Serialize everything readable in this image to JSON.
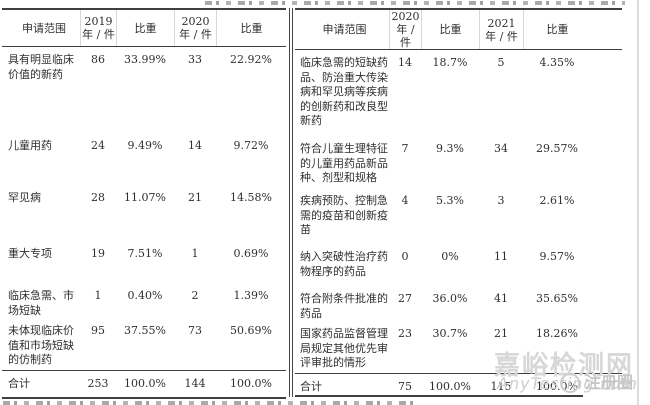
{
  "colors": {
    "background": "#ffffff",
    "ink": "#2f2f2f",
    "rule": "#3f3f3f",
    "faint_rule": "#d8d8d8",
    "watermark": "#d7d7d7"
  },
  "watermark": {
    "site_name": "嘉峪检测网",
    "site_url": "AnyTesting.com",
    "badge_label": "注册圈",
    "logo_icon": "circle-ring-icon"
  },
  "tables": [
    {
      "key": "left",
      "columns": [
        {
          "title": "申请范围",
          "sub": ""
        },
        {
          "title": "2019",
          "sub": "年 / 件"
        },
        {
          "title": "比重",
          "sub": ""
        },
        {
          "title": "2020",
          "sub": "年 / 件"
        },
        {
          "title": "比重",
          "sub": ""
        }
      ],
      "rows": [
        {
          "scope": "具有明显临床价值的新药",
          "values": [
            "86",
            "33.99%",
            "33",
            "22.92%"
          ]
        },
        {
          "scope": "儿童用药",
          "values": [
            "24",
            "9.49%",
            "14",
            "9.72%"
          ]
        },
        {
          "scope": "罕见病",
          "values": [
            "28",
            "11.07%",
            "21",
            "14.58%"
          ]
        },
        {
          "scope": "重大专项",
          "values": [
            "19",
            "7.51%",
            "1",
            "0.69%"
          ]
        },
        {
          "scope": "临床急需、市场短缺",
          "values": [
            "1",
            "0.40%",
            "2",
            "1.39%"
          ]
        },
        {
          "scope": "未体现临床价值和市场短缺的仿制药",
          "values": [
            "95",
            "37.55%",
            "73",
            "50.69%"
          ]
        }
      ],
      "total_row": {
        "scope": "合计",
        "values": [
          "253",
          "100.0%",
          "144",
          "100.0%"
        ]
      }
    },
    {
      "key": "right",
      "columns": [
        {
          "title": "申请范围",
          "sub": ""
        },
        {
          "title": "2020",
          "sub": "年 / 件"
        },
        {
          "title": "比重",
          "sub": ""
        },
        {
          "title": "2021",
          "sub": "年 / 件"
        },
        {
          "title": "比重",
          "sub": ""
        }
      ],
      "rows": [
        {
          "scope": "临床急需的短缺药品、防治重大传染病和罕见病等疾病的创新药和改良型新药",
          "values": [
            "14",
            "18.7%",
            "5",
            "4.35%"
          ]
        },
        {
          "scope": "符合儿童生理特征的儿童用药品新品种、剂型和规格",
          "values": [
            "7",
            "9.3%",
            "34",
            "29.57%"
          ]
        },
        {
          "scope": "疾病预防、控制急需的疫苗和创新疫苗",
          "values": [
            "4",
            "5.3%",
            "3",
            "2.61%"
          ]
        },
        {
          "scope": "纳入突破性治疗药物程序的药品",
          "values": [
            "0",
            "0%",
            "11",
            "9.57%"
          ]
        },
        {
          "scope": "符合附条件批准的药品",
          "values": [
            "27",
            "36.0%",
            "41",
            "35.65%"
          ]
        },
        {
          "scope": "国家药品监督管理局规定其他优先审评审批的情形",
          "values": [
            "23",
            "30.7%",
            "21",
            "18.26%"
          ]
        }
      ],
      "total_row": {
        "scope": "合计",
        "values": [
          "75",
          "100.0%",
          "115",
          "100.0%"
        ]
      }
    }
  ]
}
